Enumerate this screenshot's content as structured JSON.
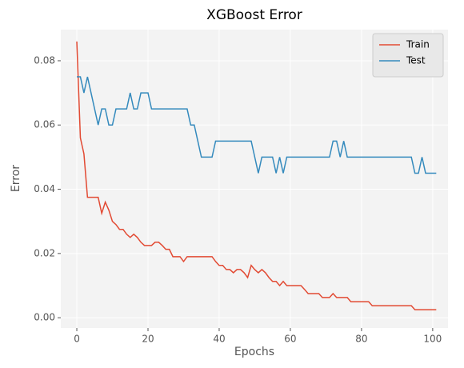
{
  "chart_data": {
    "type": "line",
    "title": "XGBoost Error",
    "x_label": "Epochs",
    "y_label": "Error",
    "x": [
      0,
      1,
      2,
      3,
      4,
      5,
      6,
      7,
      8,
      9,
      10,
      11,
      12,
      13,
      14,
      15,
      16,
      17,
      18,
      19,
      20,
      21,
      22,
      23,
      24,
      25,
      26,
      27,
      28,
      29,
      30,
      31,
      32,
      33,
      34,
      35,
      36,
      37,
      38,
      39,
      40,
      41,
      42,
      43,
      44,
      45,
      46,
      47,
      48,
      49,
      50,
      51,
      52,
      53,
      54,
      55,
      56,
      57,
      58,
      59,
      60,
      61,
      62,
      63,
      64,
      65,
      66,
      67,
      68,
      69,
      70,
      71,
      72,
      73,
      74,
      75,
      76,
      77,
      78,
      79,
      80,
      81,
      82,
      83,
      84,
      85,
      86,
      87,
      88,
      89,
      90,
      91,
      92,
      93,
      94,
      95,
      96,
      97,
      98,
      99,
      100,
      101
    ],
    "series": [
      {
        "name": "Train",
        "color": "#E24A33",
        "values": [
          0.086,
          0.056,
          0.051,
          0.0375,
          0.0375,
          0.0375,
          0.0375,
          0.0325,
          0.036,
          0.0335,
          0.03,
          0.029,
          0.0275,
          0.0275,
          0.026,
          0.025,
          0.026,
          0.025,
          0.0235,
          0.0225,
          0.0225,
          0.0225,
          0.0235,
          0.0235,
          0.0225,
          0.0213,
          0.0213,
          0.019,
          0.019,
          0.019,
          0.0175,
          0.019,
          0.019,
          0.019,
          0.019,
          0.019,
          0.019,
          0.019,
          0.019,
          0.0175,
          0.0163,
          0.0163,
          0.015,
          0.015,
          0.014,
          0.015,
          0.015,
          0.014,
          0.0125,
          0.0163,
          0.015,
          0.014,
          0.015,
          0.014,
          0.0125,
          0.0113,
          0.0113,
          0.01,
          0.0113,
          0.01,
          0.01,
          0.01,
          0.01,
          0.01,
          0.0088,
          0.0075,
          0.0075,
          0.0075,
          0.0075,
          0.0063,
          0.0063,
          0.0063,
          0.0075,
          0.0063,
          0.0063,
          0.0063,
          0.0063,
          0.005,
          0.005,
          0.005,
          0.005,
          0.005,
          0.005,
          0.00375,
          0.00375,
          0.00375,
          0.00375,
          0.00375,
          0.00375,
          0.00375,
          0.00375,
          0.00375,
          0.00375,
          0.00375,
          0.00375,
          0.0025,
          0.0025,
          0.0025,
          0.0025,
          0.0025,
          0.0025,
          0.0025
        ]
      },
      {
        "name": "Test",
        "color": "#348ABD",
        "values": [
          0.075,
          0.075,
          0.07,
          0.075,
          0.07,
          0.065,
          0.06,
          0.065,
          0.065,
          0.06,
          0.06,
          0.065,
          0.065,
          0.065,
          0.065,
          0.07,
          0.065,
          0.065,
          0.07,
          0.07,
          0.07,
          0.065,
          0.065,
          0.065,
          0.065,
          0.065,
          0.065,
          0.065,
          0.065,
          0.065,
          0.065,
          0.065,
          0.06,
          0.06,
          0.055,
          0.05,
          0.05,
          0.05,
          0.05,
          0.055,
          0.055,
          0.055,
          0.055,
          0.055,
          0.055,
          0.055,
          0.055,
          0.055,
          0.055,
          0.055,
          0.05,
          0.045,
          0.05,
          0.05,
          0.05,
          0.05,
          0.045,
          0.05,
          0.045,
          0.05,
          0.05,
          0.05,
          0.05,
          0.05,
          0.05,
          0.05,
          0.05,
          0.05,
          0.05,
          0.05,
          0.05,
          0.05,
          0.055,
          0.055,
          0.05,
          0.055,
          0.05,
          0.05,
          0.05,
          0.05,
          0.05,
          0.05,
          0.05,
          0.05,
          0.05,
          0.05,
          0.05,
          0.05,
          0.05,
          0.05,
          0.05,
          0.05,
          0.05,
          0.05,
          0.05,
          0.045,
          0.045,
          0.05,
          0.045,
          0.045,
          0.045,
          0.045
        ]
      }
    ],
    "xlim": [
      -4.5,
      104.3
    ],
    "ylim": [
      -0.0032,
      0.0897
    ],
    "xticks": [
      0,
      20,
      40,
      60,
      80,
      100
    ],
    "yticks": [
      {
        "value": 0,
        "label": "0.00"
      },
      {
        "value": 0.02,
        "label": "0.02"
      },
      {
        "value": 0.04,
        "label": "0.04"
      },
      {
        "value": 0.06,
        "label": "0.06"
      },
      {
        "value": 0.08,
        "label": "0.08"
      }
    ],
    "grid": true,
    "legend": "upper right"
  }
}
